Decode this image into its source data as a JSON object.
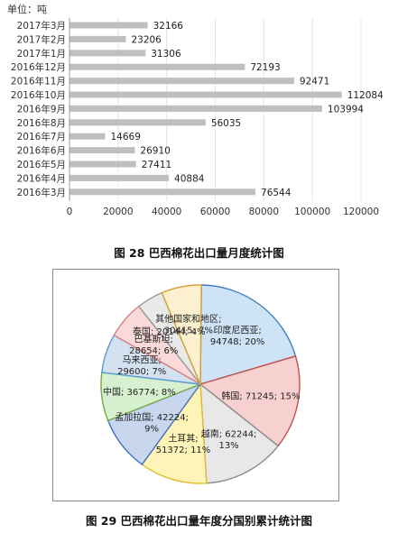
{
  "chart_data": [
    {
      "type": "bar",
      "orientation": "horizontal",
      "unit_label": "单位：吨",
      "categories": [
        "2017年3月",
        "2017年2月",
        "2017年1月",
        "2016年12月",
        "2016年11月",
        "2016年10月",
        "2016年9月",
        "2016年8月",
        "2016年7月",
        "2016年6月",
        "2016年5月",
        "2016年4月",
        "2016年3月"
      ],
      "values": [
        32166,
        23206,
        31306,
        72193,
        92471,
        112084,
        103994,
        56035,
        14669,
        26910,
        27411,
        40884,
        76544
      ],
      "value_labels": [
        "32166",
        "23206",
        "31306",
        "72193",
        "92471",
        "112084",
        "103994",
        "56035",
        "14669",
        "26910",
        "27411",
        "40884",
        "76544"
      ],
      "xlim": [
        0,
        120000
      ],
      "xticks": [
        "0",
        "20000",
        "40000",
        "60000",
        "80000",
        "100000",
        "120000"
      ],
      "bar_color": "#bfbfbf",
      "title": "图 28  巴西棉花出口量月度统计图"
    },
    {
      "type": "pie",
      "slices": [
        {
          "name": "印度尼西亚",
          "value": 94748,
          "label_line1": "印度尼西亚;",
          "label_line2": "94748; 20%",
          "color": "#cfe3f6",
          "border": "#3f7fbf"
        },
        {
          "name": "韩国",
          "value": 71245,
          "label_line1": "韩国; 71245; 15%",
          "label_line2": "",
          "color": "#f7d1cf",
          "border": "#c0504d"
        },
        {
          "name": "越南",
          "value": 62244,
          "label_line1": "越南; 62244;",
          "label_line2": "13%",
          "color": "#e8e8e8",
          "border": "#8c8c8c"
        },
        {
          "name": "土耳其",
          "value": 51372,
          "label_line1": "土耳其;",
          "label_line2": "51372; 11%",
          "color": "#fff4b8",
          "border": "#e2bb33"
        },
        {
          "name": "孟加拉国",
          "value": 42224,
          "label_line1": "孟加拉国; 42224;",
          "label_line2": "9%",
          "color": "#c9d7ee",
          "border": "#4472c4"
        },
        {
          "name": "中国",
          "value": 36774,
          "label_line1": "中国; 36774; 8%",
          "label_line2": "",
          "color": "#d6f0d0",
          "border": "#70ad47"
        },
        {
          "name": "马来西亚",
          "value": 29600,
          "label_line1": "马来西亚;",
          "label_line2": "29600; 7%",
          "color": "#d4e1f1",
          "border": "#5b9bd5"
        },
        {
          "name": "巴基斯坦",
          "value": 28654,
          "label_line1": "巴基斯坦;",
          "label_line2": "28654; 6%",
          "color": "#f9dad8",
          "border": "#d9827e"
        },
        {
          "name": "泰国",
          "value": 20144,
          "label_line1": "泰国; 20144; 4%",
          "label_line2": "",
          "color": "#e9e9e9",
          "border": "#999999"
        },
        {
          "name": "其他国家和地区",
          "value": 30415,
          "label_line1": "其他国家和地区;",
          "label_line2": "30415; 7%",
          "color": "#fdf0cf",
          "border": "#d2a23a"
        }
      ],
      "title": "图 29  巴西棉花出口量年度分国别累计统计图"
    }
  ]
}
